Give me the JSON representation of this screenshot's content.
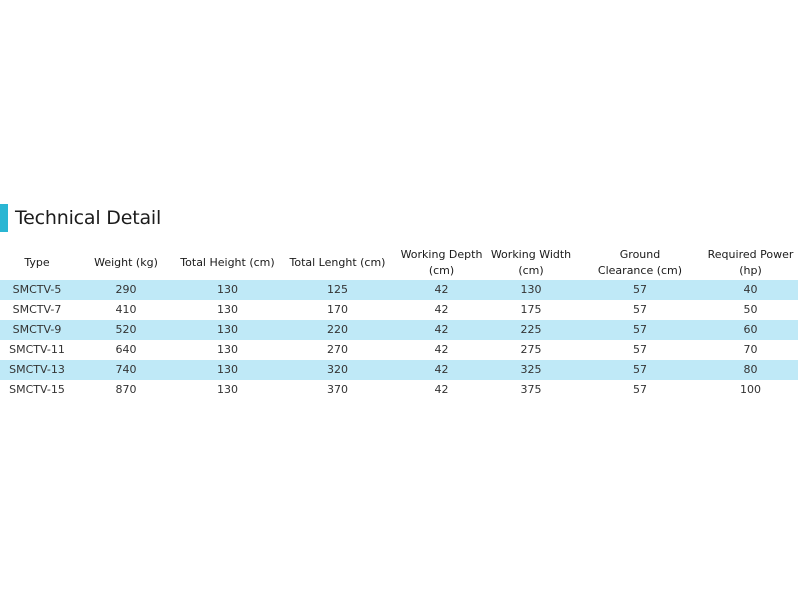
{
  "title": "Technical Detail",
  "accent_color": "#2ab6d3",
  "stripe_color": "#bfe9f7",
  "columns": [
    [
      "Type"
    ],
    [
      "Weight (kg)"
    ],
    [
      "Total Height (cm)"
    ],
    [
      "Total Lenght (cm)"
    ],
    [
      "Working Depth",
      "(cm)"
    ],
    [
      "Working Width",
      "(cm)"
    ],
    [
      "Ground",
      "Clearance (cm)"
    ],
    [
      "Required Power",
      "(hp)"
    ]
  ],
  "rows": [
    [
      "SMCTV-5",
      "290",
      "130",
      "125",
      "42",
      "130",
      "57",
      "40"
    ],
    [
      "SMCTV-7",
      "410",
      "130",
      "170",
      "42",
      "175",
      "57",
      "50"
    ],
    [
      "SMCTV-9",
      "520",
      "130",
      "220",
      "42",
      "225",
      "57",
      "60"
    ],
    [
      "SMCTV-11",
      "640",
      "130",
      "270",
      "42",
      "275",
      "57",
      "70"
    ],
    [
      "SMCTV-13",
      "740",
      "130",
      "320",
      "42",
      "325",
      "57",
      "80"
    ],
    [
      "SMCTV-15",
      "870",
      "130",
      "370",
      "42",
      "375",
      "57",
      "100"
    ]
  ]
}
